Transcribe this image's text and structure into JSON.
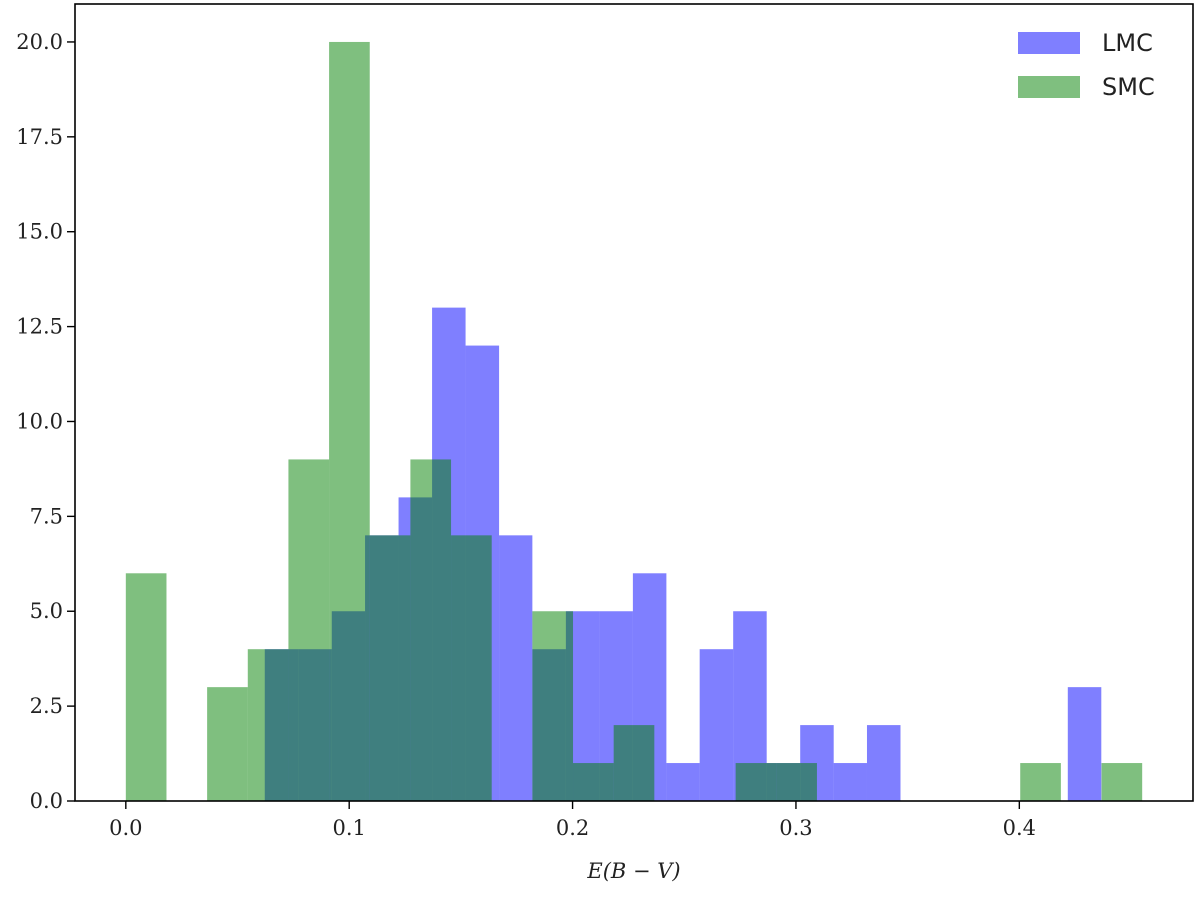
{
  "chart_data": {
    "type": "histogram",
    "xlabel": "E(B − V)",
    "xlim": [
      -0.02275,
      0.47775
    ],
    "ylim": [
      0,
      21
    ],
    "xticks": [
      {
        "value": 0,
        "label": "0.0"
      },
      0.1,
      0.2,
      0.3,
      0.4
    ],
    "yticks": [
      {
        "value": 0,
        "label": "0.0"
      },
      2.5,
      {
        "value": 5,
        "label": "5.0"
      },
      7.5,
      {
        "value": 10,
        "label": "10.0"
      },
      12.5,
      {
        "value": 15,
        "label": "15.0"
      },
      17.5,
      {
        "value": 20,
        "label": "20.0"
      }
    ],
    "alpha": 0.5,
    "legend": "upper right",
    "series": [
      {
        "name": "LMC",
        "color": "#0000ff",
        "bins": [
          0.0622,
          0.0772,
          0.0922,
          0.1071,
          0.1221,
          0.1371,
          0.1521,
          0.1671,
          0.182,
          0.197,
          0.212,
          0.227,
          0.242,
          0.2569,
          0.2719,
          0.2869,
          0.3019,
          0.3169,
          0.3318,
          0.3468,
          0.3618,
          0.3768,
          0.3918,
          0.4067,
          0.4217,
          0.4367
        ],
        "values": [
          4,
          4,
          5,
          7,
          8,
          13,
          12,
          7,
          4,
          5,
          5,
          6,
          1,
          4,
          5,
          1,
          2,
          1,
          2,
          0,
          0,
          0,
          0,
          0,
          3
        ]
      },
      {
        "name": "SMC",
        "color": "#008000",
        "bins": [
          0,
          0.0182,
          0.0364,
          0.0546,
          0.0728,
          0.091,
          0.1092,
          0.1274,
          0.1456,
          0.1638,
          0.182,
          0.2002,
          0.2184,
          0.2366,
          0.2548,
          0.273,
          0.2912,
          0.3094,
          0.3276,
          0.3458,
          0.364,
          0.3822,
          0.4004,
          0.4186,
          0.4368,
          0.455
        ],
        "values": [
          6,
          0,
          3,
          4,
          9,
          20,
          7,
          9,
          7,
          0,
          5,
          1,
          2,
          0,
          0,
          1,
          1,
          0,
          0,
          0,
          0,
          0,
          1,
          0,
          1
        ]
      }
    ]
  }
}
